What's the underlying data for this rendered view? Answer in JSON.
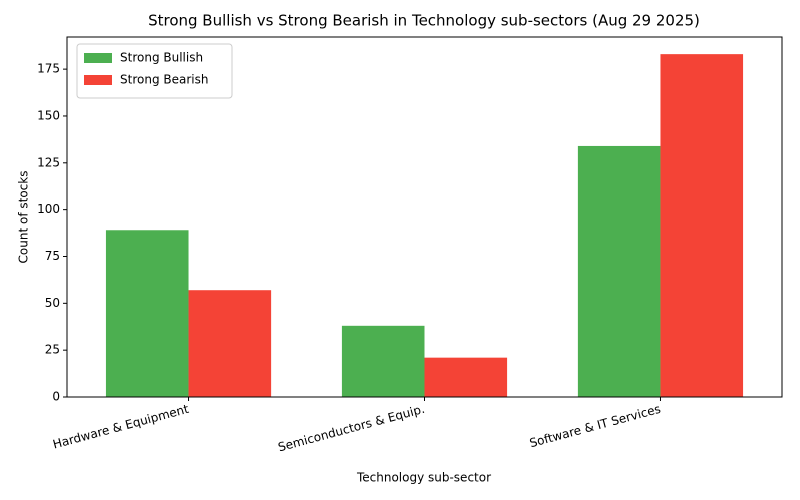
{
  "chart_data": {
    "type": "bar",
    "title": "Strong Bullish vs Strong Bearish in Technology sub-sectors (Aug 29 2025)",
    "x_label": "Technology sub-sector",
    "y_label": "Count of stocks",
    "categories": [
      "Hardware & Equipment",
      "Semiconductors & Equip.",
      "Software & IT Services"
    ],
    "series": [
      {
        "name": "Strong Bullish",
        "color": "#4caf50",
        "values": [
          89,
          38,
          134
        ]
      },
      {
        "name": "Strong Bearish",
        "color": "#f44336",
        "values": [
          57,
          21,
          183
        ]
      }
    ],
    "ylim": [
      0,
      192.15
    ],
    "yticks": [
      0,
      25,
      50,
      75,
      100,
      125,
      150,
      175
    ],
    "grid": false,
    "legend": "upper-left"
  }
}
